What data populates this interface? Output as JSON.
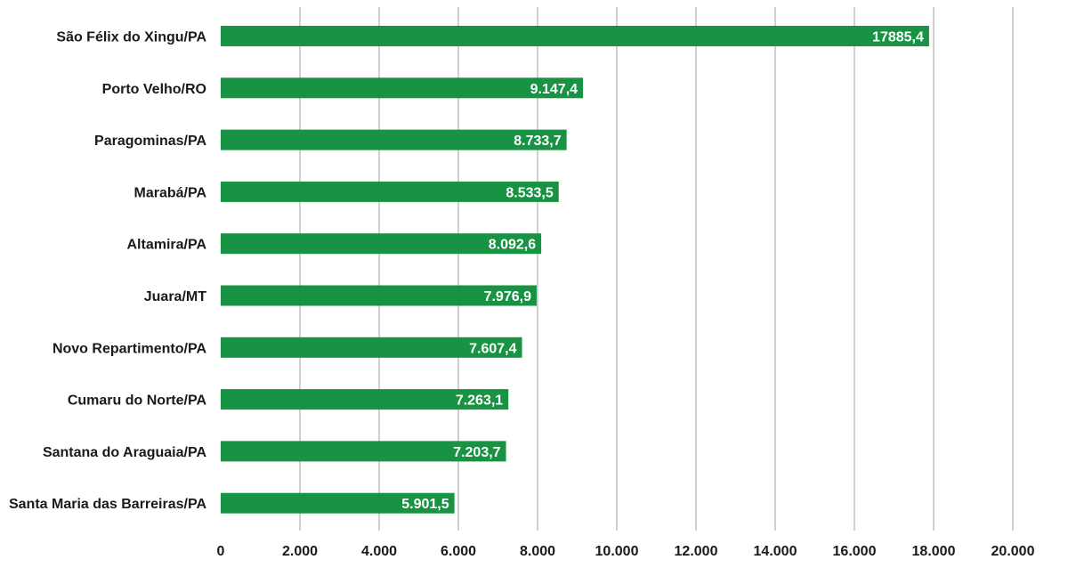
{
  "chart_data": {
    "type": "bar",
    "orientation": "horizontal",
    "categories": [
      "São Félix do Xingu/PA",
      "Porto Velho/RO",
      "Paragominas/PA",
      "Marabá/PA",
      "Altamira/PA",
      "Juara/MT",
      "Novo Repartimento/PA",
      "Cumaru do Norte/PA",
      "Santana do Araguaia/PA",
      "Santa Maria das Barreiras/PA"
    ],
    "values": [
      17885.4,
      9147.4,
      8733.7,
      8533.5,
      8092.6,
      7976.9,
      7607.4,
      7263.1,
      7203.7,
      5901.5
    ],
    "value_labels": [
      "17885,4",
      "9.147,4",
      "8.733,7",
      "8.533,5",
      "8.092,6",
      "7.976,9",
      "7.607,4",
      "7.263,1",
      "7.203,7",
      "5.901,5"
    ],
    "x_ticks": [
      0,
      2000,
      4000,
      6000,
      8000,
      10000,
      12000,
      14000,
      16000,
      18000,
      20000
    ],
    "x_tick_labels": [
      "0",
      "2.000",
      "4.000",
      "6.000",
      "8.000",
      "10.000",
      "12.000",
      "14.000",
      "16.000",
      "18.000",
      "20.000"
    ],
    "xlim": [
      0,
      20000
    ],
    "title": "",
    "xlabel": "",
    "ylabel": "",
    "grid": "vertical",
    "legend": "none",
    "colors": {
      "bar": "#189343",
      "grid": "#d0d0d0",
      "text": "#1a1a1a",
      "value_text": "#ffffff"
    }
  }
}
